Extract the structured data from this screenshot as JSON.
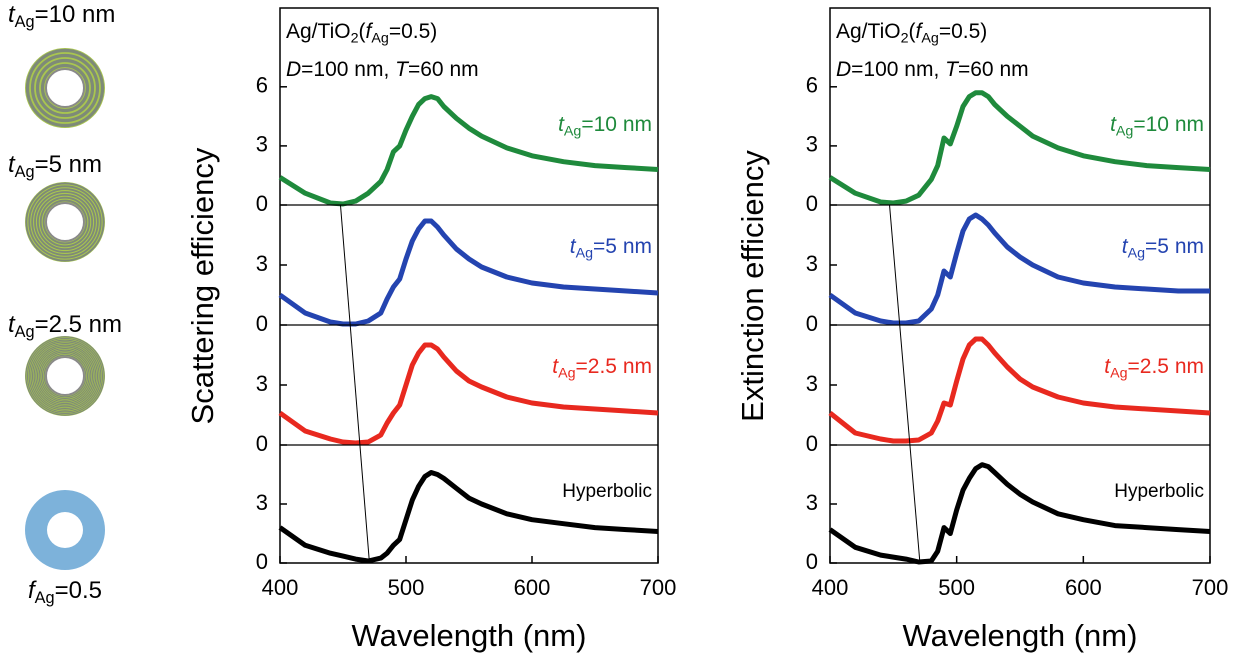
{
  "schematics": [
    {
      "label": [
        {
          "text": "t",
          "style": "italic"
        },
        {
          "text": "Ag",
          "style": "sub"
        },
        {
          "text": "=10 nm",
          "style": "normal"
        }
      ]
    },
    {
      "label": [
        {
          "text": "t",
          "style": "italic"
        },
        {
          "text": "Ag",
          "style": "sub"
        },
        {
          "text": "=5 nm",
          "style": "normal"
        }
      ]
    },
    {
      "label": [
        {
          "text": "t",
          "style": "italic"
        },
        {
          "text": "Ag",
          "style": "sub"
        },
        {
          "text": "=2.5 nm",
          "style": "normal"
        }
      ]
    },
    {
      "label": [
        {
          "text": "f",
          "style": "italic"
        },
        {
          "text": "Ag",
          "style": "sub"
        },
        {
          "text": "=0.5",
          "style": "normal"
        }
      ]
    }
  ],
  "chart_data": [
    {
      "type": "line",
      "ylabel": "Scattering efficiency",
      "xlabel": "Wavelength (nm)",
      "annotation": [
        [
          {
            "text": "Ag/TiO",
            "style": "normal"
          },
          {
            "text": "2",
            "style": "sub"
          },
          {
            "text": "(",
            "style": "normal"
          },
          {
            "text": "f",
            "style": "italic"
          },
          {
            "text": "Ag",
            "style": "sub"
          },
          {
            "text": "=0.5)",
            "style": "normal"
          }
        ],
        [
          {
            "text": "D",
            "style": "italic"
          },
          {
            "text": "=100 nm, ",
            "style": "normal"
          },
          {
            "text": "T",
            "style": "italic"
          },
          {
            "text": "=60 nm",
            "style": "normal"
          }
        ]
      ],
      "xlim": [
        400,
        700
      ],
      "xticks": [
        400,
        500,
        600,
        700
      ],
      "guide_x": [
        448,
        471
      ],
      "x": [
        400,
        420,
        440,
        450,
        460,
        470,
        480,
        485,
        490,
        495,
        500,
        505,
        510,
        515,
        520,
        525,
        530,
        540,
        550,
        560,
        580,
        600,
        625,
        650,
        675,
        700
      ],
      "series": [
        {
          "label": [
            {
              "text": "t",
              "style": "italic"
            },
            {
              "text": "Ag",
              "style": "sub"
            },
            {
              "text": "=10 nm",
              "style": "normal"
            }
          ],
          "color": "#1f8a3c",
          "ylim": [
            0,
            10
          ],
          "yticks": [
            0,
            3,
            6
          ],
          "values": [
            1.4,
            0.6,
            0.1,
            0.05,
            0.2,
            0.6,
            1.2,
            1.8,
            2.7,
            3.0,
            3.8,
            4.5,
            5.1,
            5.4,
            5.5,
            5.4,
            5.0,
            4.4,
            3.9,
            3.5,
            2.9,
            2.5,
            2.2,
            2.0,
            1.9,
            1.8
          ]
        },
        {
          "label": [
            {
              "text": "t",
              "style": "italic"
            },
            {
              "text": "Ag",
              "style": "sub"
            },
            {
              "text": "=5 nm",
              "style": "normal"
            }
          ],
          "color": "#2444b0",
          "ylim": [
            0,
            6
          ],
          "yticks": [
            0,
            3
          ],
          "values": [
            1.5,
            0.6,
            0.15,
            0.05,
            0.05,
            0.2,
            0.6,
            1.3,
            1.9,
            2.3,
            3.3,
            4.2,
            4.8,
            5.2,
            5.2,
            4.9,
            4.5,
            3.8,
            3.3,
            2.9,
            2.4,
            2.1,
            1.9,
            1.8,
            1.7,
            1.6
          ]
        },
        {
          "label": [
            {
              "text": "t",
              "style": "italic"
            },
            {
              "text": "Ag",
              "style": "sub"
            },
            {
              "text": "=2.5 nm",
              "style": "normal"
            }
          ],
          "color": "#e8291f",
          "ylim": [
            0,
            6
          ],
          "yticks": [
            0,
            3
          ],
          "values": [
            1.6,
            0.7,
            0.3,
            0.15,
            0.1,
            0.15,
            0.5,
            1.1,
            1.6,
            2.0,
            3.0,
            4.0,
            4.6,
            5.0,
            5.0,
            4.8,
            4.4,
            3.7,
            3.2,
            2.9,
            2.4,
            2.1,
            1.9,
            1.8,
            1.7,
            1.6
          ]
        },
        {
          "label": [
            {
              "text": "Hyperbolic",
              "style": "normal"
            }
          ],
          "color": "#000000",
          "ylim": [
            0,
            6
          ],
          "yticks": [
            0,
            3
          ],
          "values": [
            1.8,
            0.9,
            0.5,
            0.35,
            0.2,
            0.1,
            0.25,
            0.5,
            0.9,
            1.2,
            2.2,
            3.2,
            3.9,
            4.4,
            4.6,
            4.5,
            4.3,
            3.8,
            3.3,
            3.0,
            2.5,
            2.2,
            2.0,
            1.8,
            1.7,
            1.6
          ]
        }
      ]
    },
    {
      "type": "line",
      "ylabel": "Extinction efficiency",
      "xlabel": "Wavelength (nm)",
      "annotation": [
        [
          {
            "text": "Ag/TiO",
            "style": "normal"
          },
          {
            "text": "2",
            "style": "sub"
          },
          {
            "text": "(",
            "style": "normal"
          },
          {
            "text": "f",
            "style": "italic"
          },
          {
            "text": "Ag",
            "style": "sub"
          },
          {
            "text": "=0.5)",
            "style": "normal"
          }
        ],
        [
          {
            "text": "D",
            "style": "italic"
          },
          {
            "text": "=100 nm, ",
            "style": "normal"
          },
          {
            "text": "T",
            "style": "italic"
          },
          {
            "text": "=60 nm",
            "style": "normal"
          }
        ]
      ],
      "xlim": [
        400,
        700
      ],
      "xticks": [
        400,
        500,
        600,
        700
      ],
      "guide_x": [
        447,
        471
      ],
      "x": [
        400,
        420,
        440,
        450,
        460,
        470,
        480,
        485,
        490,
        495,
        500,
        505,
        510,
        515,
        520,
        525,
        530,
        540,
        550,
        560,
        580,
        600,
        625,
        650,
        675,
        700
      ],
      "series": [
        {
          "label": [
            {
              "text": "t",
              "style": "italic"
            },
            {
              "text": "Ag",
              "style": "sub"
            },
            {
              "text": "=10 nm",
              "style": "normal"
            }
          ],
          "color": "#1f8a3c",
          "ylim": [
            0,
            10
          ],
          "yticks": [
            0,
            3,
            6
          ],
          "values": [
            1.4,
            0.6,
            0.15,
            0.1,
            0.2,
            0.5,
            1.3,
            2.0,
            3.4,
            3.1,
            4.0,
            5.0,
            5.5,
            5.7,
            5.7,
            5.5,
            5.1,
            4.5,
            4.0,
            3.5,
            2.9,
            2.5,
            2.2,
            2.0,
            1.9,
            1.8
          ]
        },
        {
          "label": [
            {
              "text": "t",
              "style": "italic"
            },
            {
              "text": "Ag",
              "style": "sub"
            },
            {
              "text": "=5 nm",
              "style": "normal"
            }
          ],
          "color": "#2444b0",
          "ylim": [
            0,
            6
          ],
          "yticks": [
            0,
            3
          ],
          "values": [
            1.5,
            0.6,
            0.2,
            0.1,
            0.1,
            0.2,
            0.8,
            1.5,
            2.7,
            2.4,
            3.6,
            4.7,
            5.3,
            5.5,
            5.3,
            5.0,
            4.6,
            3.9,
            3.4,
            3.0,
            2.4,
            2.1,
            1.9,
            1.8,
            1.7,
            1.7
          ]
        },
        {
          "label": [
            {
              "text": "t",
              "style": "italic"
            },
            {
              "text": "Ag",
              "style": "sub"
            },
            {
              "text": "=2.5 nm",
              "style": "normal"
            }
          ],
          "color": "#e8291f",
          "ylim": [
            0,
            6
          ],
          "yticks": [
            0,
            3
          ],
          "values": [
            1.6,
            0.6,
            0.3,
            0.2,
            0.2,
            0.25,
            0.6,
            1.2,
            2.1,
            2.0,
            3.2,
            4.3,
            5.0,
            5.3,
            5.3,
            5.0,
            4.6,
            3.9,
            3.3,
            2.9,
            2.4,
            2.1,
            1.9,
            1.8,
            1.7,
            1.6
          ]
        },
        {
          "label": [
            {
              "text": "Hyperbolic",
              "style": "normal"
            }
          ],
          "color": "#000000",
          "ylim": [
            0,
            6
          ],
          "yticks": [
            0,
            3
          ],
          "values": [
            1.7,
            0.8,
            0.4,
            0.3,
            0.2,
            0.05,
            0.1,
            0.6,
            1.8,
            1.5,
            2.7,
            3.7,
            4.3,
            4.8,
            5.0,
            4.9,
            4.6,
            4.0,
            3.5,
            3.1,
            2.5,
            2.2,
            1.9,
            1.8,
            1.7,
            1.6
          ]
        }
      ]
    }
  ]
}
